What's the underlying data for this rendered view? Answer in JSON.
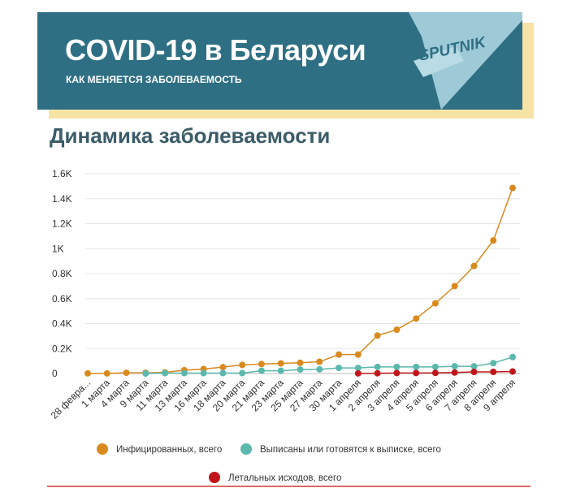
{
  "header": {
    "title": "COVID-19 в Беларуси",
    "subtitle": "КАК МЕНЯЕТСЯ ЗАБОЛЕВАЕМОСТЬ",
    "logo_text": "SPUTNIK"
  },
  "colors": {
    "header_bg": "#2f6f84",
    "header_shadow": "#f7e2a6",
    "infected": "#d98a1f",
    "recovered": "#5ab8ad",
    "deaths": "#c0161b",
    "title": "#3b5c68"
  },
  "chart_data": {
    "type": "line",
    "title": "Динамика заболеваемости",
    "ylim": [
      0,
      1600
    ],
    "yticks": [
      {
        "value": 0,
        "label": "0"
      },
      {
        "value": 200,
        "label": "0.2K"
      },
      {
        "value": 400,
        "label": "0.4K"
      },
      {
        "value": 600,
        "label": "0.6K"
      },
      {
        "value": 800,
        "label": "0.8K"
      },
      {
        "value": 1000,
        "label": "1K"
      },
      {
        "value": 1200,
        "label": "1.2K"
      },
      {
        "value": 1400,
        "label": "1.4K"
      },
      {
        "value": 1600,
        "label": "1.6K"
      }
    ],
    "categories": [
      "28 февра...",
      "1 марта",
      "4 марта",
      "9 марта",
      "11 марта",
      "13 марта",
      "16 марта",
      "18 марта",
      "20 марта",
      "21 марта",
      "23 марта",
      "25 марта",
      "27 марта",
      "30 марта",
      "1 апреля",
      "2 апреля",
      "3 апреля",
      "4 апреля",
      "5 апреля",
      "6 апреля",
      "7 апреля",
      "8 апреля",
      "9 апреля"
    ],
    "series": [
      {
        "name": "Инфицированных, всего",
        "color": "#d98a1f",
        "values": [
          1,
          1,
          6,
          6,
          9,
          27,
          36,
          51,
          69,
          76,
          81,
          86,
          94,
          152,
          152,
          304,
          351,
          440,
          562,
          700,
          861,
          1066,
          1486
        ]
      },
      {
        "name": "Выписаны или готовятся к выписке, всего",
        "color": "#5ab8ad",
        "values": [
          null,
          null,
          null,
          0,
          3,
          3,
          3,
          3,
          3,
          22,
          22,
          32,
          33,
          45,
          45,
          53,
          53,
          53,
          53,
          58,
          58,
          83,
          132
        ]
      },
      {
        "name": "Летальных исходов, всего",
        "color": "#c0161b",
        "values": [
          null,
          null,
          null,
          null,
          null,
          null,
          null,
          null,
          null,
          null,
          null,
          null,
          null,
          null,
          1,
          2,
          4,
          4,
          5,
          8,
          13,
          13,
          16
        ]
      }
    ],
    "legend_position": "bottom",
    "grid": true
  }
}
